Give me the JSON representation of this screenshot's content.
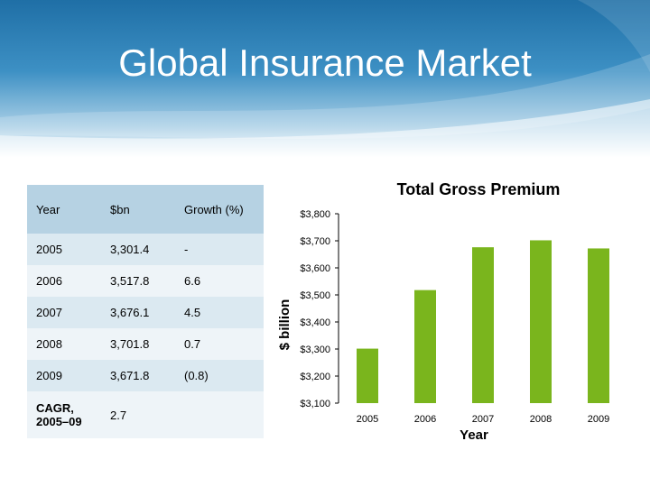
{
  "title": "Global Insurance Market",
  "table": {
    "headers": [
      "Year",
      "$bn",
      "Growth (%)"
    ],
    "rows": [
      [
        "2005",
        "3,301.4",
        "-"
      ],
      [
        "2006",
        "3,517.8",
        "6.6"
      ],
      [
        "2007",
        "3,676.1",
        "4.5"
      ],
      [
        "2008",
        "3,701.8",
        "0.7"
      ],
      [
        "2009",
        "3,671.8",
        "(0.8)"
      ],
      [
        "CAGR, 2005–09",
        "2.7",
        ""
      ]
    ]
  },
  "chart_data": {
    "type": "bar",
    "title": "Total Gross Premium",
    "xlabel": "Year",
    "ylabel": "$ billion",
    "categories": [
      "2005",
      "2006",
      "2007",
      "2008",
      "2009"
    ],
    "values": [
      3301.4,
      3517.8,
      3676.1,
      3701.8,
      3671.8
    ],
    "ylim": [
      3100,
      3800
    ],
    "ytick_labels": [
      "$3,100",
      "$3,200",
      "$3,300",
      "$3,400",
      "$3,500",
      "$3,600",
      "$3,700",
      "$3,800"
    ],
    "bar_color": "#7ab51d",
    "grid": false
  },
  "colors": {
    "header_bg": "#2a7bb2",
    "table_header": "#b6d2e3",
    "table_odd": "#dbe9f1",
    "table_even": "#eef4f8"
  }
}
